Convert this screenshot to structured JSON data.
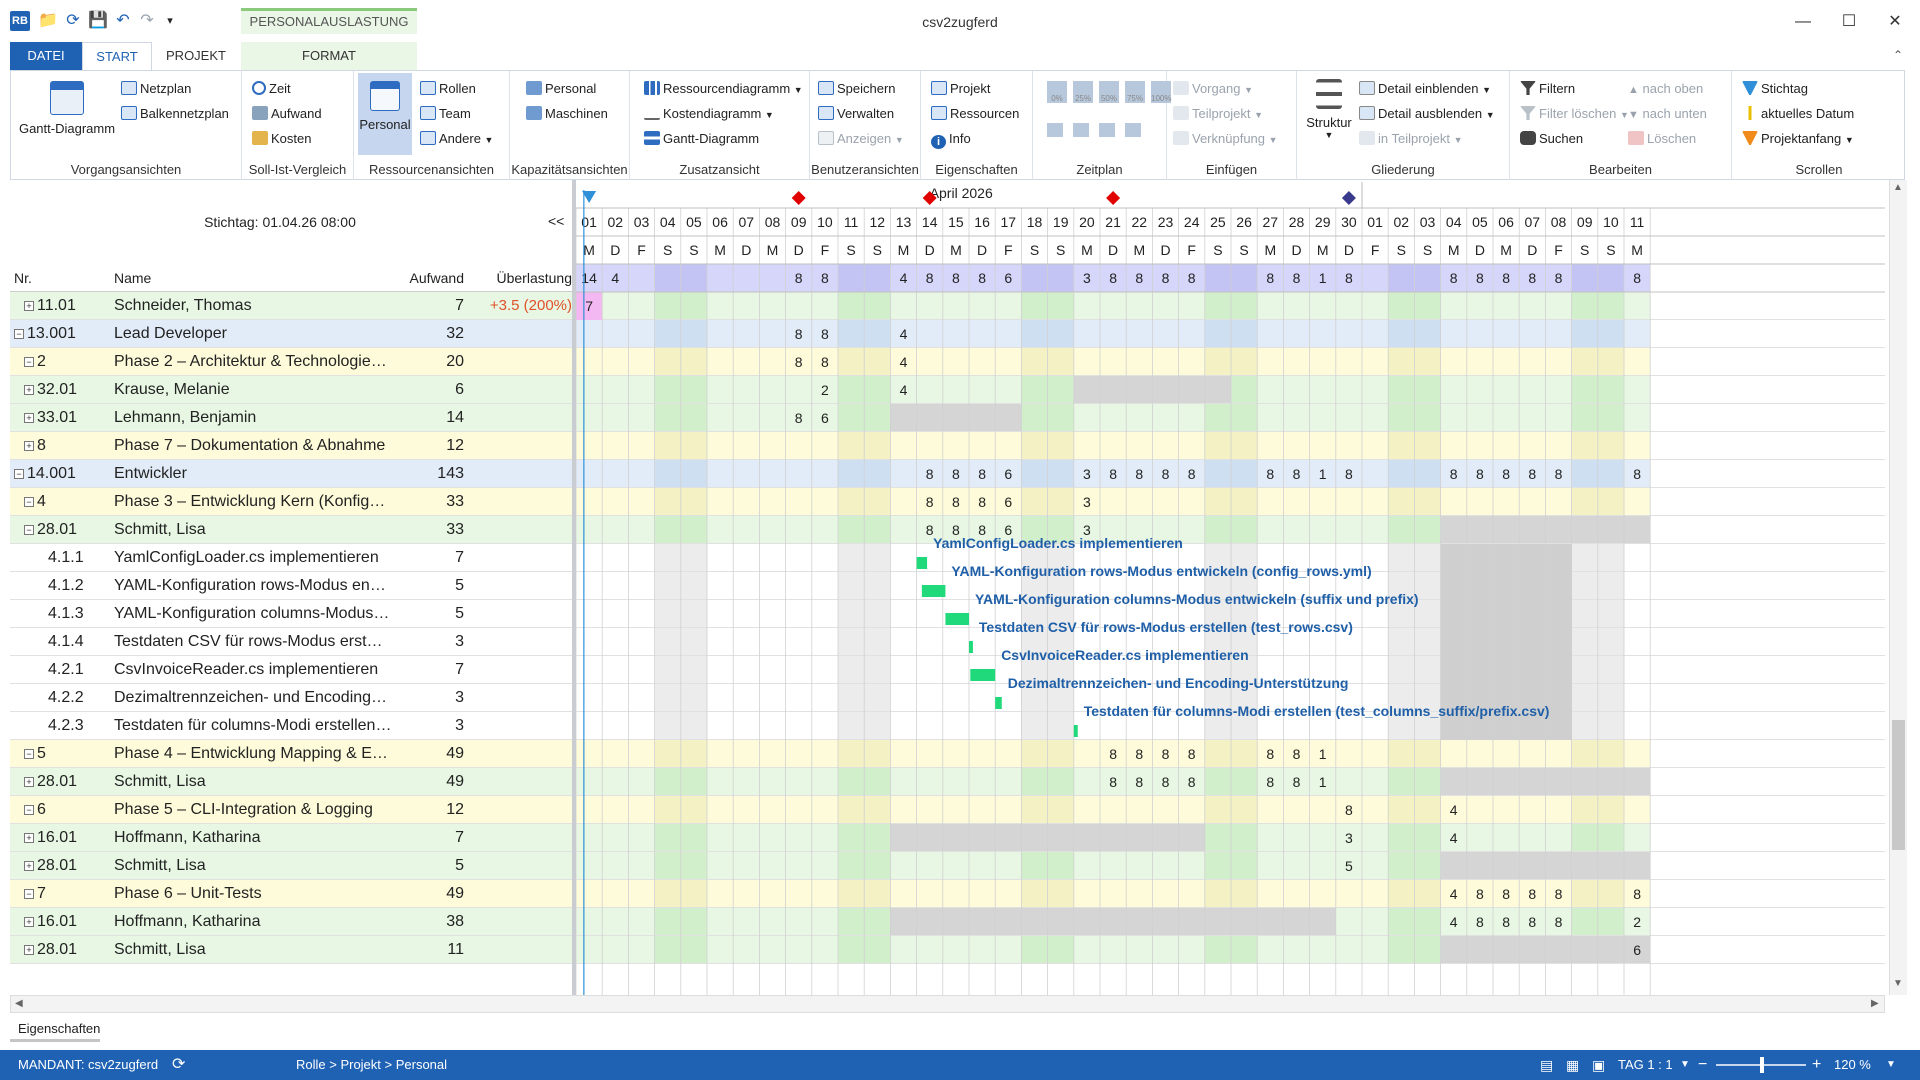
{
  "window": {
    "title": "csv2zugferd"
  },
  "tabs": {
    "datei": "DATEI",
    "start": "START",
    "projekt": "PROJEKT",
    "context_group": "PERSONALAUSLASTUNG",
    "format": "FORMAT"
  },
  "ribbon": {
    "vorgang": {
      "label": "Vorgangsansichten",
      "gantt": "Gantt-Diagramm",
      "netzplan": "Netzplan",
      "balken": "Balkennetzplan"
    },
    "sollist": {
      "label": "Soll-Ist-Vergleich",
      "zeit": "Zeit",
      "aufwand": "Aufwand",
      "kosten": "Kosten"
    },
    "ressourcen": {
      "label": "Ressourcenansichten",
      "personal": "Personal",
      "rollen": "Rollen",
      "team": "Team",
      "andere": "Andere"
    },
    "kapazitaet": {
      "label": "Kapazitätsansichten",
      "personal": "Personal",
      "maschinen": "Maschinen"
    },
    "zusatz": {
      "label": "Zusatzansicht",
      "resdiagramm": "Ressourcendiagramm",
      "kostendiagramm": "Kostendiagramm",
      "gantt": "Gantt-Diagramm"
    },
    "benutzer": {
      "label": "Benutzeransichten",
      "speichern": "Speichern",
      "verwalten": "Verwalten",
      "anzeigen": "Anzeigen"
    },
    "eigenschaften": {
      "label": "Eigenschaften",
      "projekt": "Projekt",
      "ressourcen": "Ressourcen",
      "info": "Info"
    },
    "zeitplan": {
      "label": "Zeitplan",
      "z0": "0%",
      "z25": "25%",
      "z50": "50%",
      "z75": "75%",
      "z100": "100%"
    },
    "einfuegen": {
      "label": "Einfügen",
      "vorgang": "Vorgang",
      "teilprojekt": "Teilprojekt",
      "verknuepfung": "Verknüpfung"
    },
    "gliederung": {
      "label": "Gliederung",
      "struktur": "Struktur",
      "einblenden": "Detail einblenden",
      "ausblenden": "Detail ausblenden",
      "inteilprojekt": "in Teilprojekt"
    },
    "bearbeiten": {
      "label": "Bearbeiten",
      "filtern": "Filtern",
      "filterloeschen": "Filter löschen",
      "suchen": "Suchen",
      "oben": "nach oben",
      "unten": "nach unten",
      "loeschen": "Löschen"
    },
    "scrollen": {
      "label": "Scrollen",
      "stichtag": "Stichtag",
      "aktuell": "aktuelles Datum",
      "projektanfang": "Projektanfang"
    }
  },
  "view": {
    "stichtag": "Stichtag: 01.04.26 08:00",
    "collapse": "<<",
    "month": "April 2026"
  },
  "columns": {
    "nr": "Nr.",
    "name": "Name",
    "aufwand": "Aufwand",
    "ueberlastung": "Überlastung"
  },
  "rows": [
    {
      "nr": "11.01",
      "name": "Schneider, Thomas",
      "aufwand": "7",
      "ueberlastung": "+3.5 (200%)",
      "type": "res",
      "level": 1,
      "expander": "+"
    },
    {
      "nr": "13.001",
      "name": "Lead Developer",
      "aufwand": "32",
      "ueberlastung": "",
      "type": "role",
      "level": 0,
      "expander": "-"
    },
    {
      "nr": "2",
      "name": "Phase 2 – Architektur & Technologie…",
      "aufwand": "20",
      "ueberlastung": "",
      "type": "phase",
      "level": 1,
      "expander": "-"
    },
    {
      "nr": "32.01",
      "name": "Krause, Melanie",
      "aufwand": "6",
      "ueberlastung": "",
      "type": "res",
      "level": 1,
      "expander": "+"
    },
    {
      "nr": "33.01",
      "name": "Lehmann, Benjamin",
      "aufwand": "14",
      "ueberlastung": "",
      "type": "res",
      "level": 1,
      "expander": "+"
    },
    {
      "nr": "8",
      "name": "Phase 7 – Dokumentation & Abnahme",
      "aufwand": "12",
      "ueberlastung": "",
      "type": "phase",
      "level": 1,
      "expander": "+"
    },
    {
      "nr": "14.001",
      "name": "Entwickler",
      "aufwand": "143",
      "ueberlastung": "",
      "type": "role",
      "level": 0,
      "expander": "-"
    },
    {
      "nr": "4",
      "name": "Phase 3 – Entwicklung Kern (Konfig…",
      "aufwand": "33",
      "ueberlastung": "",
      "type": "phase",
      "level": 1,
      "expander": "-"
    },
    {
      "nr": "28.01",
      "name": "Schmitt, Lisa",
      "aufwand": "33",
      "ueberlastung": "",
      "type": "res",
      "level": 1,
      "expander": "-"
    },
    {
      "nr": "4.1.1",
      "name": "YamlConfigLoader.cs implementieren",
      "aufwand": "7",
      "ueberlastung": "",
      "type": "task",
      "level": 2,
      "expander": ""
    },
    {
      "nr": "4.1.2",
      "name": "YAML-Konfiguration rows-Modus en…",
      "aufwand": "5",
      "ueberlastung": "",
      "type": "task",
      "level": 2,
      "expander": ""
    },
    {
      "nr": "4.1.3",
      "name": "YAML-Konfiguration columns-Modus…",
      "aufwand": "5",
      "ueberlastung": "",
      "type": "task",
      "level": 2,
      "expander": ""
    },
    {
      "nr": "4.1.4",
      "name": "Testdaten CSV für rows-Modus erst…",
      "aufwand": "3",
      "ueberlastung": "",
      "type": "task",
      "level": 2,
      "expander": ""
    },
    {
      "nr": "4.2.1",
      "name": "CsvInvoiceReader.cs implementieren",
      "aufwand": "7",
      "ueberlastung": "",
      "type": "task",
      "level": 2,
      "expander": ""
    },
    {
      "nr": "4.2.2",
      "name": "Dezimaltrennzeichen- und Encoding…",
      "aufwand": "3",
      "ueberlastung": "",
      "type": "task",
      "level": 2,
      "expander": ""
    },
    {
      "nr": "4.2.3",
      "name": "Testdaten für columns-Modi erstellen…",
      "aufwand": "3",
      "ueberlastung": "",
      "type": "task",
      "level": 2,
      "expander": ""
    },
    {
      "nr": "5",
      "name": "Phase 4 – Entwicklung Mapping & E…",
      "aufwand": "49",
      "ueberlastung": "",
      "type": "phase",
      "level": 1,
      "expander": "-"
    },
    {
      "nr": "28.01",
      "name": "Schmitt, Lisa",
      "aufwand": "49",
      "ueberlastung": "",
      "type": "res",
      "level": 1,
      "expander": "+"
    },
    {
      "nr": "6",
      "name": "Phase 5 – CLI-Integration & Logging",
      "aufwand": "12",
      "ueberlastung": "",
      "type": "phase",
      "level": 1,
      "expander": "-"
    },
    {
      "nr": "16.01",
      "name": "Hoffmann, Katharina",
      "aufwand": "7",
      "ueberlastung": "",
      "type": "res",
      "level": 1,
      "expander": "+"
    },
    {
      "nr": "28.01",
      "name": "Schmitt, Lisa",
      "aufwand": "5",
      "ueberlastung": "",
      "type": "res",
      "level": 1,
      "expander": "+"
    },
    {
      "nr": "7",
      "name": "Phase 6 – Unit-Tests",
      "aufwand": "49",
      "ueberlastung": "",
      "type": "phase",
      "level": 1,
      "expander": "-"
    },
    {
      "nr": "16.01",
      "name": "Hoffmann, Katharina",
      "aufwand": "38",
      "ueberlastung": "",
      "type": "res",
      "level": 1,
      "expander": "+"
    },
    {
      "nr": "28.01",
      "name": "Schmitt, Lisa",
      "aufwand": "11",
      "ueberlastung": "",
      "type": "res",
      "level": 1,
      "expander": "+"
    }
  ],
  "timeline": {
    "days": [
      "01",
      "02",
      "03",
      "04",
      "05",
      "06",
      "07",
      "08",
      "09",
      "10",
      "11",
      "12",
      "13",
      "14",
      "15",
      "16",
      "17",
      "18",
      "19",
      "20",
      "21",
      "22",
      "23",
      "24",
      "25",
      "26",
      "27",
      "28",
      "29",
      "30",
      "01",
      "02",
      "03",
      "04",
      "05",
      "06",
      "07",
      "08",
      "09",
      "10",
      "11"
    ],
    "weekdays": [
      "M",
      "D",
      "F",
      "S",
      "S",
      "M",
      "D",
      "M",
      "D",
      "F",
      "S",
      "S",
      "M",
      "D",
      "M",
      "D",
      "F",
      "S",
      "S",
      "M",
      "D",
      "M",
      "D",
      "F",
      "S",
      "S",
      "M",
      "D",
      "M",
      "D",
      "F",
      "S",
      "S",
      "M",
      "D",
      "M",
      "D",
      "F",
      "S",
      "S",
      "M"
    ],
    "summary_row": [
      "14",
      "4",
      "",
      "",
      "",
      "",
      "",
      "",
      "8",
      "8",
      "",
      "",
      "4",
      "8",
      "8",
      "8",
      "6",
      "",
      "",
      "3",
      "8",
      "8",
      "8",
      "8",
      "",
      "",
      "8",
      "8",
      "1",
      "8",
      "",
      "",
      "",
      "8",
      "8",
      "8",
      "8",
      "8",
      "",
      "",
      "8"
    ],
    "milestone_markers": [
      {
        "day": 0,
        "shape": "triangle",
        "color": "#2f8fd8"
      },
      {
        "day": 8,
        "shape": "diamond",
        "color": "#e00000"
      },
      {
        "day": 13,
        "shape": "diamond",
        "color": "#e00000"
      },
      {
        "day": 20,
        "shape": "diamond",
        "color": "#e00000"
      },
      {
        "day": 29,
        "shape": "diamond",
        "color": "#3a3a8c"
      }
    ],
    "row_values": [
      [
        "7"
      ],
      [
        "",
        "",
        "",
        "",
        "",
        "",
        "",
        "",
        "8",
        "8",
        "",
        "",
        "4"
      ],
      [
        "",
        "",
        "",
        "",
        "",
        "",
        "",
        "",
        "8",
        "8",
        "",
        "",
        "4"
      ],
      [
        "",
        "",
        "",
        "",
        "",
        "",
        "",
        "",
        "",
        "2",
        "",
        "",
        "4"
      ],
      [
        "",
        "",
        "",
        "",
        "",
        "",
        "",
        "",
        "8",
        "6"
      ],
      [],
      [
        "",
        "",
        "",
        "",
        "",
        "",
        "",
        "",
        "",
        "",
        "",
        "",
        "",
        "8",
        "8",
        "8",
        "6",
        "",
        "",
        "3",
        "8",
        "8",
        "8",
        "8",
        "",
        "",
        "8",
        "8",
        "1",
        "8",
        "",
        "",
        "",
        "8",
        "8",
        "8",
        "8",
        "8",
        "",
        "",
        "8"
      ],
      [
        "",
        "",
        "",
        "",
        "",
        "",
        "",
        "",
        "",
        "",
        "",
        "",
        "",
        "8",
        "8",
        "8",
        "6",
        "",
        "",
        "3"
      ],
      [
        "",
        "",
        "",
        "",
        "",
        "",
        "",
        "",
        "",
        "",
        "",
        "",
        "",
        "8",
        "8",
        "8",
        "6",
        "",
        "",
        "3"
      ],
      [],
      [],
      [],
      [],
      [],
      [],
      [],
      [
        "",
        "",
        "",
        "",
        "",
        "",
        "",
        "",
        "",
        "",
        "",
        "",
        "",
        "",
        "",
        "",
        "",
        "",
        "",
        "",
        "8",
        "8",
        "8",
        "8",
        "",
        "",
        "8",
        "8",
        "1"
      ],
      [
        "",
        "",
        "",
        "",
        "",
        "",
        "",
        "",
        "",
        "",
        "",
        "",
        "",
        "",
        "",
        "",
        "",
        "",
        "",
        "",
        "8",
        "8",
        "8",
        "8",
        "",
        "",
        "8",
        "8",
        "1"
      ],
      [
        "",
        "",
        "",
        "",
        "",
        "",
        "",
        "",
        "",
        "",
        "",
        "",
        "",
        "",
        "",
        "",
        "",
        "",
        "",
        "",
        "",
        "",
        "",
        "",
        "",
        "",
        "",
        "",
        "",
        "8",
        "",
        "",
        "",
        "4"
      ],
      [
        "",
        "",
        "",
        "",
        "",
        "",
        "",
        "",
        "",
        "",
        "",
        "",
        "",
        "",
        "",
        "",
        "",
        "",
        "",
        "",
        "",
        "",
        "",
        "",
        "",
        "",
        "",
        "",
        "",
        "3",
        "",
        "",
        "",
        "4"
      ],
      [
        "",
        "",
        "",
        "",
        "",
        "",
        "",
        "",
        "",
        "",
        "",
        "",
        "",
        "",
        "",
        "",
        "",
        "",
        "",
        "",
        "",
        "",
        "",
        "",
        "",
        "",
        "",
        "",
        "",
        "5"
      ],
      [
        "",
        "",
        "",
        "",
        "",
        "",
        "",
        "",
        "",
        "",
        "",
        "",
        "",
        "",
        "",
        "",
        "",
        "",
        "",
        "",
        "",
        "",
        "",
        "",
        "",
        "",
        "",
        "",
        "",
        "",
        "",
        "",
        "",
        "4",
        "8",
        "8",
        "8",
        "8",
        "",
        "",
        "8"
      ],
      [
        "",
        "",
        "",
        "",
        "",
        "",
        "",
        "",
        "",
        "",
        "",
        "",
        "",
        "",
        "",
        "",
        "",
        "",
        "",
        "",
        "",
        "",
        "",
        "",
        "",
        "",
        "",
        "",
        "",
        "",
        "",
        "",
        "",
        "4",
        "8",
        "8",
        "8",
        "8",
        "",
        "",
        "2"
      ],
      [
        "",
        "",
        "",
        "",
        "",
        "",
        "",
        "",
        "",
        "",
        "",
        "",
        "",
        "",
        "",
        "",
        "",
        "",
        "",
        "",
        "",
        "",
        "",
        "",
        "",
        "",
        "",
        "",
        "",
        "",
        "",
        "",
        "",
        "",
        "",
        "",
        "",
        "",
        "",
        "",
        "6"
      ]
    ],
    "task_bars": [
      {
        "row": 9,
        "start": 13.0,
        "end": 13.4,
        "label": "YamlConfigLoader.cs implementieren"
      },
      {
        "row": 10,
        "start": 13.2,
        "end": 14.1,
        "label": "YAML-Konfiguration rows-Modus entwickeln (config_rows.yml)"
      },
      {
        "row": 11,
        "start": 14.1,
        "end": 15.0,
        "label": "YAML-Konfiguration columns-Modus entwickeln (suffix und prefix)"
      },
      {
        "row": 12,
        "start": 15.0,
        "end": 15.15,
        "label": "Testdaten CSV für rows-Modus erstellen (test_rows.csv)"
      },
      {
        "row": 13,
        "start": 15.05,
        "end": 16.0,
        "label": "CsvInvoiceReader.cs implementieren"
      },
      {
        "row": 14,
        "start": 16.0,
        "end": 16.25,
        "label": "Dezimaltrennzeichen- und Encoding-Unterstützung"
      },
      {
        "row": 15,
        "start": 19.0,
        "end": 19.15,
        "label": "Testdaten für columns-Modi erstellen (test_columns_suffix/prefix.csv)"
      }
    ],
    "colors": {
      "weekend": "#e8e8e8",
      "bar": "#1fd97a",
      "label": "#1f5fa8",
      "today": "#2f8fd8",
      "overload": "#f3b7f2",
      "unavailable": "#d5d5d5"
    }
  },
  "properties_tab": "Eigenschaften",
  "statusbar": {
    "mandant": "MANDANT: csv2zugferd",
    "path": "Rolle > Projekt > Personal",
    "tag": "TAG 1 : 1",
    "zoom": "120 %"
  }
}
